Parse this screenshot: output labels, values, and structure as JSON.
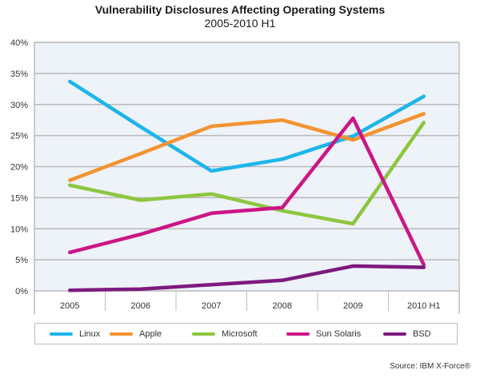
{
  "chart_data": {
    "type": "line",
    "title": "Vulnerability Disclosures Affecting Operating Systems",
    "subtitle": "2005-2010 H1",
    "xlabel": "",
    "ylabel": "",
    "categories": [
      "2005",
      "2006",
      "2007",
      "2008",
      "2009",
      "2010 H1"
    ],
    "ylim": [
      0,
      40
    ],
    "yticks": [
      0,
      5,
      10,
      15,
      20,
      25,
      30,
      35,
      40
    ],
    "ytick_labels": [
      "0%",
      "5%",
      "10%",
      "15%",
      "20%",
      "25%",
      "30%",
      "35%",
      "40%"
    ],
    "grid": true,
    "legend_position": "bottom",
    "series": [
      {
        "name": "Linux",
        "color": "#1cb5ea",
        "values": [
          33.7,
          26.4,
          19.3,
          21.2,
          24.9,
          31.3
        ]
      },
      {
        "name": "Apple",
        "color": "#f39330",
        "values": [
          17.8,
          22.1,
          26.5,
          27.5,
          24.3,
          28.5
        ]
      },
      {
        "name": "Microsoft",
        "color": "#8dc63f",
        "values": [
          17.0,
          14.6,
          15.6,
          12.9,
          10.8,
          27.1
        ]
      },
      {
        "name": "Sun Solaris",
        "color": "#cc1585",
        "values": [
          6.2,
          9.1,
          12.5,
          13.4,
          27.8,
          4.2
        ]
      },
      {
        "name": "BSD",
        "color": "#7c1a7e",
        "values": [
          0.1,
          0.3,
          1.0,
          1.7,
          4.0,
          3.8
        ]
      }
    ],
    "source": "Source: IBM X-Force®"
  },
  "colors": {
    "plot_background": "#eef2f9",
    "gridline": "#b9b9b9",
    "border": "#bdbdbd"
  }
}
